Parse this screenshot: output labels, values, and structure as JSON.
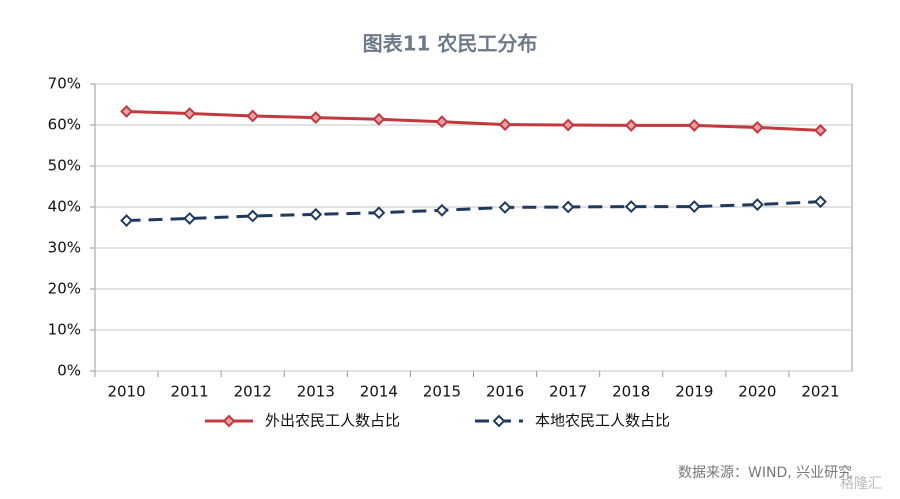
{
  "chart_data": {
    "type": "line",
    "title": "图表11  农民工分布",
    "categories": [
      "2010",
      "2011",
      "2012",
      "2013",
      "2014",
      "2015",
      "2016",
      "2017",
      "2018",
      "2019",
      "2020",
      "2021"
    ],
    "series": [
      {
        "name": "外出农民工人数占比",
        "color": "#c0393f",
        "dash": false,
        "values": [
          63.3,
          62.8,
          62.2,
          61.8,
          61.4,
          60.8,
          60.1,
          60.0,
          59.9,
          59.9,
          59.4,
          58.7
        ]
      },
      {
        "name": "本地农民工人数占比",
        "color": "#1f3a5f",
        "dash": true,
        "values": [
          36.7,
          37.2,
          37.8,
          38.2,
          38.6,
          39.2,
          39.9,
          40.0,
          40.1,
          40.1,
          40.6,
          41.3
        ]
      }
    ],
    "ylim": [
      0,
      70
    ],
    "yticks": [
      {
        "value": 0,
        "label": "0%"
      },
      {
        "value": 10,
        "label": "10%"
      },
      {
        "value": 20,
        "label": "20%"
      },
      {
        "value": 30,
        "label": "30%"
      },
      {
        "value": 40,
        "label": "40%"
      },
      {
        "value": 50,
        "label": "50%"
      },
      {
        "value": 60,
        "label": "60%"
      },
      {
        "value": 70,
        "label": "70%"
      }
    ],
    "grid": true,
    "legend": "bottom",
    "source": "数据来源：WIND, 兴业研究",
    "watermark": "格隆汇"
  }
}
